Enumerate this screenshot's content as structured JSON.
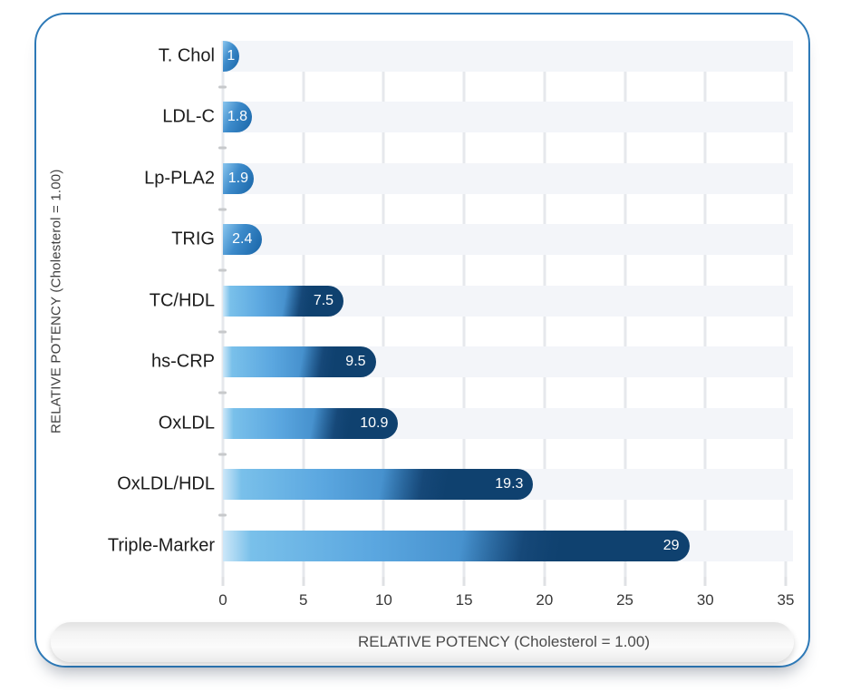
{
  "theme": {
    "card_border_color": "#2d79b7",
    "bar_light_color": "#79c0ea",
    "bar_dark_color": "#114a80",
    "row_band_color": "#f3f5f9",
    "banner_background": "#f0f0f0"
  },
  "chart_data": {
    "type": "bar",
    "orientation": "horizontal",
    "title": "",
    "categories": [
      "T. Chol",
      "LDL-C",
      "Lp-PLA2",
      "TRIG",
      "TC/HDL",
      "hs-CRP",
      "OxLDL",
      "OxLDL/HDL",
      "Triple-Marker"
    ],
    "values": [
      1,
      1.8,
      1.9,
      2.4,
      7.5,
      9.5,
      10.9,
      19.3,
      29
    ],
    "value_labels": [
      "1",
      "1.8",
      "1.9",
      "2.4",
      "7.5",
      "9.5",
      "10.9",
      "19.3",
      "29"
    ],
    "xlabel": "RELATIVE POTENCY (Cholesterol = 1.00)",
    "ylabel": "RELATIVE POTENCY (Cholesterol = 1.00)",
    "xlim": [
      0,
      35
    ],
    "xticks": [
      0,
      5,
      10,
      15,
      20,
      25,
      30,
      35
    ],
    "grid": "vertical-gridlines-with-alternating-row-bands",
    "legend": "none"
  }
}
